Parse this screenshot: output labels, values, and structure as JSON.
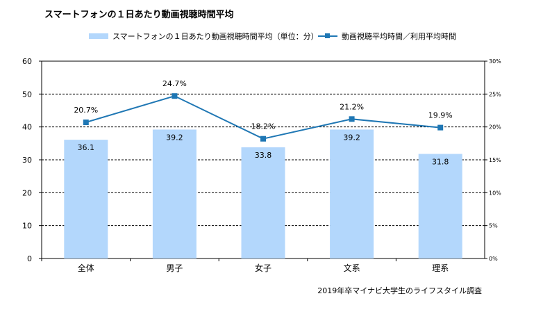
{
  "title": "スマートフォンの１日あたり動画視聴時間平均",
  "source": "2019年卒マイナビ大学生のライフスタイル調査",
  "colors": {
    "bar": "#b3d7fc",
    "line": "#1f77b4",
    "grid": "#000000"
  },
  "chart_data": {
    "type": "bar",
    "categories": [
      "全体",
      "男子",
      "女子",
      "文系",
      "理系"
    ],
    "series": [
      {
        "name": "スマートフォンの１日あたり動画視聴時間平均（単位：分）",
        "type": "bar",
        "axis": "left",
        "values": [
          36.1,
          39.2,
          33.8,
          39.2,
          31.8
        ],
        "labels": [
          "36.1",
          "39.2",
          "33.8",
          "39.2",
          "31.8"
        ]
      },
      {
        "name": "動画視聴平均時間／利用平均時間",
        "type": "line",
        "axis": "right",
        "values": [
          20.7,
          24.7,
          18.2,
          21.2,
          19.9
        ],
        "labels": [
          "20.7%",
          "24.7%",
          "18.2%",
          "21.2%",
          "19.9%"
        ]
      }
    ],
    "y_left": {
      "ylim": [
        0,
        60
      ],
      "ticks": [
        "0",
        "10",
        "20",
        "30",
        "40",
        "50",
        "60"
      ]
    },
    "y_right": {
      "ylim": [
        0,
        30
      ],
      "ticks": [
        "0%",
        "5%",
        "10%",
        "15%",
        "20%",
        "25%",
        "30%"
      ]
    },
    "grid": "dashed-horizontal",
    "legend": "top"
  }
}
